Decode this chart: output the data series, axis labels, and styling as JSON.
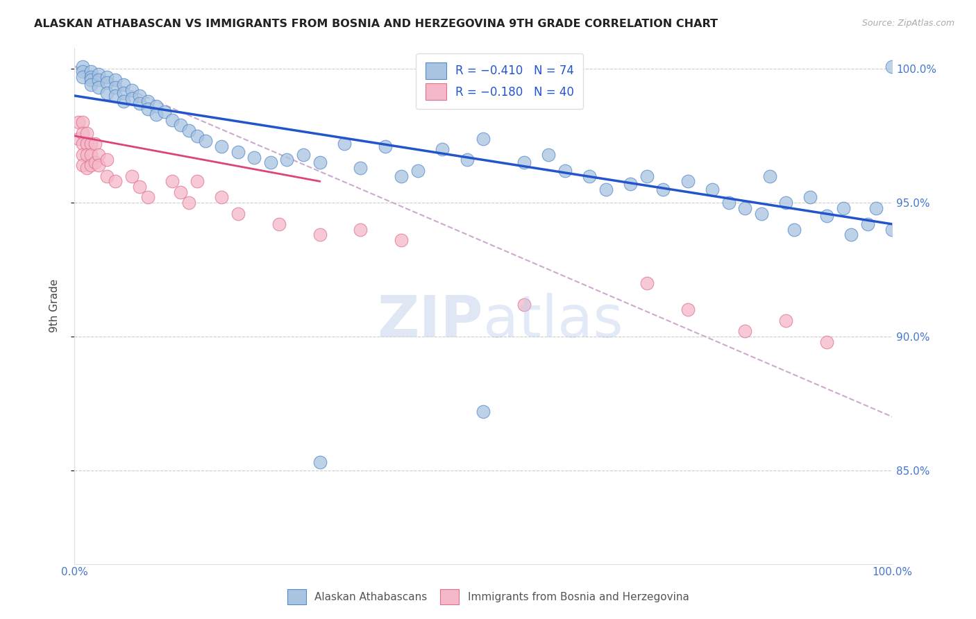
{
  "title": "ALASKAN ATHABASCAN VS IMMIGRANTS FROM BOSNIA AND HERZEGOVINA 9TH GRADE CORRELATION CHART",
  "source": "Source: ZipAtlas.com",
  "ylabel": "9th Grade",
  "xlim": [
    0.0,
    1.0
  ],
  "ylim": [
    0.815,
    1.008
  ],
  "yticks": [
    0.85,
    0.9,
    0.95,
    1.0
  ],
  "ytick_labels": [
    "85.0%",
    "90.0%",
    "95.0%",
    "100.0%"
  ],
  "blue_color": "#a8c4e0",
  "pink_color": "#f4b8c8",
  "blue_edge_color": "#5588cc",
  "pink_edge_color": "#e07090",
  "blue_line_color": "#2255cc",
  "pink_line_color": "#dd4477",
  "dashed_line_color": "#ccaacc",
  "right_label_color": "#4477cc",
  "watermark_color": "#ccd8ee",
  "blue_x": [
    0.01,
    0.01,
    0.01,
    0.02,
    0.02,
    0.02,
    0.02,
    0.03,
    0.03,
    0.03,
    0.04,
    0.04,
    0.04,
    0.05,
    0.05,
    0.05,
    0.06,
    0.06,
    0.06,
    0.07,
    0.07,
    0.08,
    0.08,
    0.09,
    0.09,
    0.1,
    0.1,
    0.11,
    0.12,
    0.13,
    0.14,
    0.15,
    0.16,
    0.18,
    0.2,
    0.22,
    0.24,
    0.26,
    0.28,
    0.3,
    0.33,
    0.35,
    0.38,
    0.4,
    0.42,
    0.45,
    0.48,
    0.5,
    0.55,
    0.58,
    0.6,
    0.63,
    0.65,
    0.68,
    0.7,
    0.72,
    0.75,
    0.78,
    0.8,
    0.82,
    0.84,
    0.85,
    0.87,
    0.88,
    0.9,
    0.92,
    0.94,
    0.95,
    0.97,
    0.98,
    1.0,
    1.0,
    0.3,
    0.5
  ],
  "blue_y": [
    1.001,
    0.999,
    0.997,
    0.999,
    0.997,
    0.996,
    0.994,
    0.998,
    0.996,
    0.993,
    0.997,
    0.995,
    0.991,
    0.996,
    0.993,
    0.99,
    0.994,
    0.991,
    0.988,
    0.992,
    0.989,
    0.99,
    0.987,
    0.988,
    0.985,
    0.986,
    0.983,
    0.984,
    0.981,
    0.979,
    0.977,
    0.975,
    0.973,
    0.971,
    0.969,
    0.967,
    0.965,
    0.966,
    0.968,
    0.965,
    0.972,
    0.963,
    0.971,
    0.96,
    0.962,
    0.97,
    0.966,
    0.974,
    0.965,
    0.968,
    0.962,
    0.96,
    0.955,
    0.957,
    0.96,
    0.955,
    0.958,
    0.955,
    0.95,
    0.948,
    0.946,
    0.96,
    0.95,
    0.94,
    0.952,
    0.945,
    0.948,
    0.938,
    0.942,
    0.948,
    0.94,
    1.001,
    0.853,
    0.872
  ],
  "pink_x": [
    0.005,
    0.005,
    0.01,
    0.01,
    0.01,
    0.01,
    0.01,
    0.015,
    0.015,
    0.015,
    0.015,
    0.02,
    0.02,
    0.02,
    0.025,
    0.025,
    0.03,
    0.03,
    0.04,
    0.04,
    0.05,
    0.07,
    0.08,
    0.09,
    0.12,
    0.13,
    0.14,
    0.15,
    0.18,
    0.2,
    0.25,
    0.3,
    0.35,
    0.4,
    0.55,
    0.7,
    0.75,
    0.82,
    0.87,
    0.92
  ],
  "pink_y": [
    0.98,
    0.974,
    0.98,
    0.976,
    0.972,
    0.968,
    0.964,
    0.976,
    0.972,
    0.968,
    0.963,
    0.972,
    0.968,
    0.964,
    0.972,
    0.965,
    0.968,
    0.964,
    0.966,
    0.96,
    0.958,
    0.96,
    0.956,
    0.952,
    0.958,
    0.954,
    0.95,
    0.958,
    0.952,
    0.946,
    0.942,
    0.938,
    0.94,
    0.936,
    0.912,
    0.92,
    0.91,
    0.902,
    0.906,
    0.898
  ],
  "blue_trend_x": [
    0.0,
    1.0
  ],
  "blue_trend_y": [
    0.99,
    0.942
  ],
  "pink_trend_x": [
    0.0,
    0.3
  ],
  "pink_trend_y": [
    0.975,
    0.958
  ],
  "dashed_trend_x": [
    0.0,
    1.0
  ],
  "dashed_trend_y": [
    1.001,
    0.87
  ]
}
